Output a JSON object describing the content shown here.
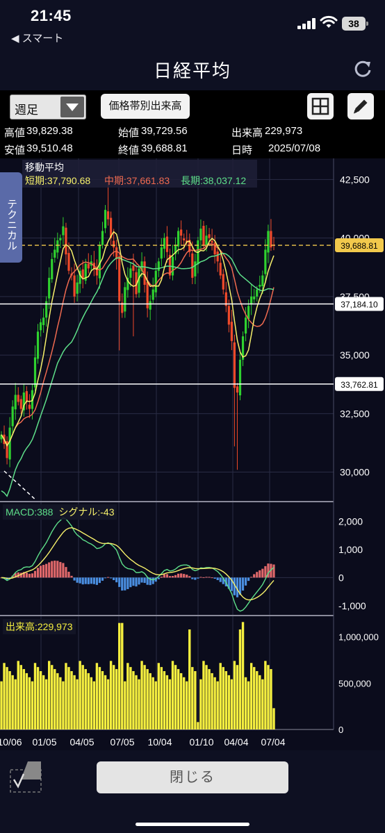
{
  "status_bar": {
    "time": "21:45",
    "back_label": "◀ スマート",
    "battery": "38"
  },
  "header": {
    "title": "日経平均",
    "refresh_icon": "refresh-icon"
  },
  "controls": {
    "period_select": "週足",
    "volume_button": "価格帯別出来高",
    "grid_icon": "grid-icon",
    "pen_icon": "pen-icon"
  },
  "price_info": {
    "high_label": "高値",
    "high": "39,829.38",
    "open_label": "始値",
    "open": "39,729.56",
    "volume_label": "出来高",
    "volume": "229,973",
    "low_label": "安値",
    "low": "39,510.48",
    "close_label": "終値",
    "close": "39,688.81",
    "date_label": "日時",
    "date": "2025/07/08"
  },
  "technical_tab": "テクニカル",
  "moving_average": {
    "title": "移動平均",
    "short": "短期:37,790.68",
    "mid": "中期:37,661.83",
    "long": "長期:38,037.12"
  },
  "macd": {
    "macd": "MACD:388",
    "signal": "シグナル:-43"
  },
  "volume_panel": {
    "label": "出来高:229,973"
  },
  "colors": {
    "up": "#2fd12f",
    "down": "#f04a2a",
    "short_ma": "#f7f16b",
    "mid_ma": "#f06a50",
    "long_ma": "#5ee08a",
    "macd_up": "#e0686a",
    "macd_down": "#4a8ee0",
    "volume": "#f5ef3f",
    "price_marker": "#f2c94c"
  },
  "chart_data": {
    "type": "candlestick",
    "price_axis_ticks": [
      "42,500",
      "40,000",
      "37,500",
      "35,000",
      "32,500",
      "30,000"
    ],
    "price_markers": [
      {
        "label": "39,688.81",
        "value": 39688.81,
        "style": "dashed-yellow"
      },
      {
        "label": "37,184.10",
        "value": 37184.1,
        "style": "white"
      },
      {
        "label": "33,762.81",
        "value": 33762.81,
        "style": "white"
      }
    ],
    "macd_axis_ticks": [
      "2,000",
      "1,000",
      "0",
      "-1,000"
    ],
    "volume_axis_ticks": [
      "1,000,000",
      "500,000",
      "0"
    ],
    "x_ticks": [
      "10/06",
      "01/05",
      "04/05",
      "07/05",
      "10/04",
      "01/10",
      "04/04",
      "07/04"
    ],
    "close_series": [
      31600,
      31200,
      30600,
      31900,
      32800,
      33300,
      33000,
      32700,
      33400,
      33000,
      32700,
      33500,
      34900,
      36000,
      36400,
      36600,
      37300,
      38300,
      39100,
      39500,
      39900,
      40000,
      40500,
      39300,
      38600,
      38400,
      37500,
      38100,
      38600,
      38300,
      38900,
      38700,
      39000,
      38700,
      38400,
      39700,
      40300,
      41200,
      40800,
      40000,
      39600,
      39100,
      37300,
      36800,
      37900,
      38300,
      38700,
      38600,
      37600,
      38700,
      39000,
      38000,
      37000,
      37300,
      37800,
      38600,
      39000,
      39600,
      40000,
      39400,
      38400,
      39200,
      39700,
      40300,
      40100,
      39900,
      39800,
      39400,
      38300,
      39000,
      39900,
      40400,
      39700,
      40100,
      40000,
      39800,
      39300,
      39000,
      38400,
      37800,
      37100,
      36300,
      35600,
      33600,
      33400,
      34800,
      35800,
      36600,
      37100,
      37500,
      37500,
      37800,
      38000,
      38400,
      39500,
      40300,
      39600,
      39690
    ]
  }
}
